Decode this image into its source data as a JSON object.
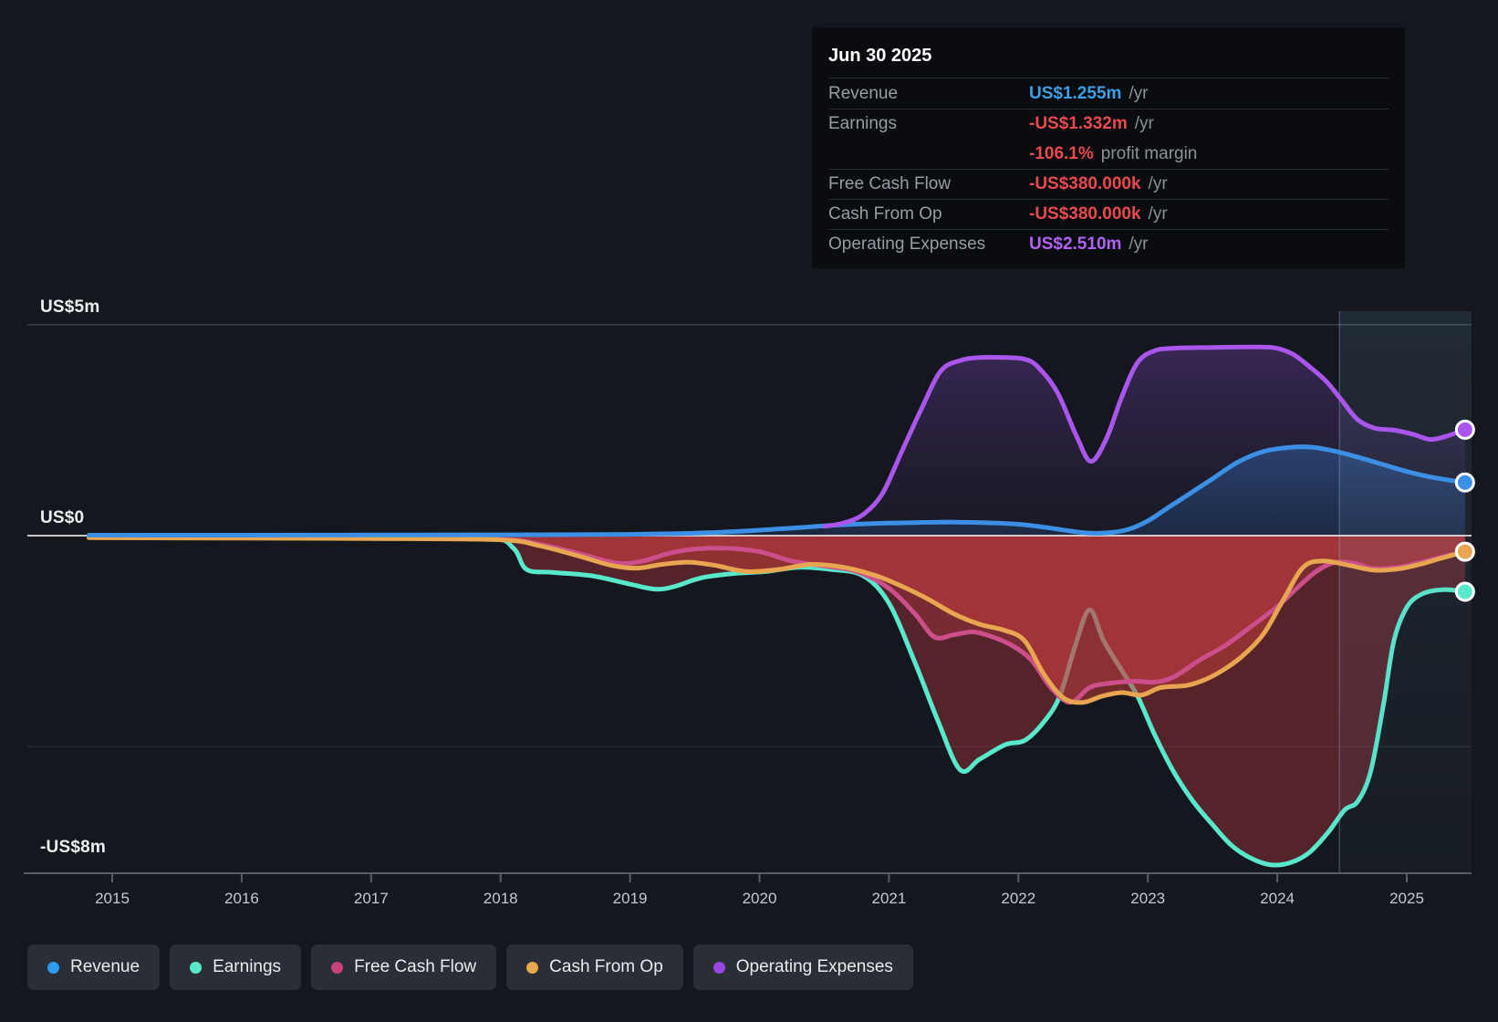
{
  "tooltip": {
    "date": "Jun 30 2025",
    "rows": [
      {
        "label": "Revenue",
        "value": "US$1.255m",
        "suffix": "/yr",
        "color": "blue",
        "divider": true
      },
      {
        "label": "Earnings",
        "value": "-US$1.332m",
        "suffix": "/yr",
        "color": "red",
        "divider": true
      },
      {
        "label": "",
        "value": "-106.1%",
        "suffix": "profit margin",
        "color": "red",
        "divider": false
      },
      {
        "label": "Free Cash Flow",
        "value": "-US$380.000k",
        "suffix": "/yr",
        "color": "red",
        "divider": true
      },
      {
        "label": "Cash From Op",
        "value": "-US$380.000k",
        "suffix": "/yr",
        "color": "red",
        "divider": true
      },
      {
        "label": "Operating Expenses",
        "value": "US$2.510m",
        "suffix": "/yr",
        "color": "purple",
        "divider": true
      }
    ]
  },
  "legend": [
    {
      "id": "revenue",
      "label": "Revenue",
      "color": "#2d9df0"
    },
    {
      "id": "earnings",
      "label": "Earnings",
      "color": "#58e8cb"
    },
    {
      "id": "fcf",
      "label": "Free Cash Flow",
      "color": "#c9417e"
    },
    {
      "id": "cashop",
      "label": "Cash From Op",
      "color": "#e8a84e"
    },
    {
      "id": "opex",
      "label": "Operating Expenses",
      "color": "#9b45e4"
    }
  ],
  "chart_data": {
    "type": "area",
    "title": "",
    "xlabel": "",
    "ylabel": "US$",
    "x_unit": "year",
    "xlim": [
      2014.35,
      2025.7
    ],
    "ylim": [
      -8,
      5
    ],
    "grid": true,
    "y_axis_labels": [
      {
        "label": "US$5m",
        "value": 5
      },
      {
        "label": "US$0",
        "value": 0
      },
      {
        "label": "-US$8m",
        "value": -8
      }
    ],
    "x_ticks": [
      2015,
      2016,
      2017,
      2018,
      2019,
      2020,
      2021,
      2022,
      2023,
      2024,
      2025
    ],
    "highlight_band": {
      "start": 2024.48,
      "end": 2025.5
    },
    "series": [
      {
        "name": "Revenue",
        "color": "#3b90e5",
        "fill": "rgba(56,122,201,0.36)",
        "points": [
          [
            2014.82,
            0.01
          ],
          [
            2016,
            0.01
          ],
          [
            2017,
            0.015
          ],
          [
            2018,
            0.02
          ],
          [
            2018.8,
            0.025
          ],
          [
            2019.2,
            0.04
          ],
          [
            2019.6,
            0.07
          ],
          [
            2020,
            0.13
          ],
          [
            2020.3,
            0.19
          ],
          [
            2020.6,
            0.25
          ],
          [
            2020.9,
            0.29
          ],
          [
            2021.2,
            0.31
          ],
          [
            2021.5,
            0.32
          ],
          [
            2021.8,
            0.3
          ],
          [
            2022.0,
            0.27
          ],
          [
            2022.2,
            0.2
          ],
          [
            2022.4,
            0.11
          ],
          [
            2022.55,
            0.06
          ],
          [
            2022.7,
            0.07
          ],
          [
            2022.85,
            0.15
          ],
          [
            2023.0,
            0.35
          ],
          [
            2023.15,
            0.65
          ],
          [
            2023.3,
            0.95
          ],
          [
            2023.5,
            1.35
          ],
          [
            2023.7,
            1.75
          ],
          [
            2023.9,
            2.0
          ],
          [
            2024.1,
            2.09
          ],
          [
            2024.25,
            2.1
          ],
          [
            2024.4,
            2.03
          ],
          [
            2024.6,
            1.88
          ],
          [
            2024.8,
            1.7
          ],
          [
            2025.0,
            1.52
          ],
          [
            2025.2,
            1.38
          ],
          [
            2025.45,
            1.26
          ]
        ]
      },
      {
        "name": "Earnings",
        "color": "#58e8cb",
        "fill": "rgba(150,47,55,0.5)",
        "points": [
          [
            2014.82,
            -0.02
          ],
          [
            2016,
            -0.03
          ],
          [
            2017,
            -0.04
          ],
          [
            2017.9,
            -0.05
          ],
          [
            2018.1,
            -0.3
          ],
          [
            2018.2,
            -0.8
          ],
          [
            2018.4,
            -0.87
          ],
          [
            2018.7,
            -0.95
          ],
          [
            2019.0,
            -1.15
          ],
          [
            2019.2,
            -1.27
          ],
          [
            2019.35,
            -1.2
          ],
          [
            2019.55,
            -1.0
          ],
          [
            2019.8,
            -0.9
          ],
          [
            2020.05,
            -0.85
          ],
          [
            2020.3,
            -0.75
          ],
          [
            2020.55,
            -0.8
          ],
          [
            2020.8,
            -0.95
          ],
          [
            2021.0,
            -1.6
          ],
          [
            2021.2,
            -3.0
          ],
          [
            2021.38,
            -4.4
          ],
          [
            2021.55,
            -5.55
          ],
          [
            2021.7,
            -5.3
          ],
          [
            2021.9,
            -4.95
          ],
          [
            2022.05,
            -4.85
          ],
          [
            2022.2,
            -4.4
          ],
          [
            2022.32,
            -3.8
          ],
          [
            2022.44,
            -2.6
          ],
          [
            2022.55,
            -1.76
          ],
          [
            2022.66,
            -2.5
          ],
          [
            2022.8,
            -3.2
          ],
          [
            2022.92,
            -3.8
          ],
          [
            2023.05,
            -4.7
          ],
          [
            2023.2,
            -5.6
          ],
          [
            2023.35,
            -6.3
          ],
          [
            2023.5,
            -6.85
          ],
          [
            2023.65,
            -7.35
          ],
          [
            2023.8,
            -7.65
          ],
          [
            2023.95,
            -7.8
          ],
          [
            2024.1,
            -7.75
          ],
          [
            2024.25,
            -7.5
          ],
          [
            2024.4,
            -7.0
          ],
          [
            2024.52,
            -6.5
          ],
          [
            2024.62,
            -6.3
          ],
          [
            2024.72,
            -5.6
          ],
          [
            2024.82,
            -4.0
          ],
          [
            2024.9,
            -2.5
          ],
          [
            2025.0,
            -1.7
          ],
          [
            2025.12,
            -1.38
          ],
          [
            2025.28,
            -1.28
          ],
          [
            2025.45,
            -1.33
          ]
        ]
      },
      {
        "name": "Free Cash Flow",
        "color": "#cc4f8c",
        "fill": "rgba(205,62,72,0.3)",
        "points": [
          [
            2014.82,
            -0.04
          ],
          [
            2016,
            -0.05
          ],
          [
            2017,
            -0.06
          ],
          [
            2018,
            -0.09
          ],
          [
            2018.3,
            -0.2
          ],
          [
            2018.6,
            -0.42
          ],
          [
            2018.9,
            -0.65
          ],
          [
            2019.1,
            -0.6
          ],
          [
            2019.3,
            -0.42
          ],
          [
            2019.5,
            -0.32
          ],
          [
            2019.75,
            -0.3
          ],
          [
            2020.0,
            -0.38
          ],
          [
            2020.25,
            -0.6
          ],
          [
            2020.5,
            -0.72
          ],
          [
            2020.75,
            -0.85
          ],
          [
            2021.0,
            -1.25
          ],
          [
            2021.2,
            -1.85
          ],
          [
            2021.35,
            -2.4
          ],
          [
            2021.5,
            -2.35
          ],
          [
            2021.65,
            -2.28
          ],
          [
            2021.8,
            -2.4
          ],
          [
            2021.95,
            -2.6
          ],
          [
            2022.1,
            -2.95
          ],
          [
            2022.25,
            -3.6
          ],
          [
            2022.4,
            -3.95
          ],
          [
            2022.55,
            -3.6
          ],
          [
            2022.7,
            -3.5
          ],
          [
            2022.9,
            -3.45
          ],
          [
            2023.05,
            -3.47
          ],
          [
            2023.2,
            -3.35
          ],
          [
            2023.4,
            -2.95
          ],
          [
            2023.6,
            -2.6
          ],
          [
            2023.8,
            -2.15
          ],
          [
            2024.0,
            -1.68
          ],
          [
            2024.15,
            -1.25
          ],
          [
            2024.3,
            -0.85
          ],
          [
            2024.45,
            -0.63
          ],
          [
            2024.6,
            -0.66
          ],
          [
            2024.75,
            -0.78
          ],
          [
            2024.95,
            -0.74
          ],
          [
            2025.1,
            -0.64
          ],
          [
            2025.25,
            -0.52
          ],
          [
            2025.45,
            -0.38
          ]
        ]
      },
      {
        "name": "Cash From Op",
        "color": "#e7a64f",
        "fill": "rgba(198,62,56,0.52)",
        "points": [
          [
            2014.82,
            -0.05
          ],
          [
            2016,
            -0.06
          ],
          [
            2017,
            -0.07
          ],
          [
            2018,
            -0.1
          ],
          [
            2018.3,
            -0.24
          ],
          [
            2018.6,
            -0.48
          ],
          [
            2018.85,
            -0.7
          ],
          [
            2019.05,
            -0.77
          ],
          [
            2019.25,
            -0.68
          ],
          [
            2019.45,
            -0.63
          ],
          [
            2019.65,
            -0.7
          ],
          [
            2019.9,
            -0.85
          ],
          [
            2020.15,
            -0.8
          ],
          [
            2020.4,
            -0.68
          ],
          [
            2020.65,
            -0.75
          ],
          [
            2020.9,
            -0.95
          ],
          [
            2021.1,
            -1.2
          ],
          [
            2021.3,
            -1.5
          ],
          [
            2021.5,
            -1.85
          ],
          [
            2021.7,
            -2.1
          ],
          [
            2021.9,
            -2.25
          ],
          [
            2022.05,
            -2.5
          ],
          [
            2022.2,
            -3.3
          ],
          [
            2022.35,
            -3.85
          ],
          [
            2022.5,
            -3.95
          ],
          [
            2022.65,
            -3.8
          ],
          [
            2022.8,
            -3.72
          ],
          [
            2022.95,
            -3.78
          ],
          [
            2023.1,
            -3.6
          ],
          [
            2023.3,
            -3.55
          ],
          [
            2023.45,
            -3.4
          ],
          [
            2023.6,
            -3.15
          ],
          [
            2023.75,
            -2.8
          ],
          [
            2023.9,
            -2.3
          ],
          [
            2024.05,
            -1.5
          ],
          [
            2024.2,
            -0.75
          ],
          [
            2024.35,
            -0.6
          ],
          [
            2024.55,
            -0.7
          ],
          [
            2024.75,
            -0.82
          ],
          [
            2024.95,
            -0.78
          ],
          [
            2025.1,
            -0.68
          ],
          [
            2025.25,
            -0.55
          ],
          [
            2025.45,
            -0.38
          ]
        ]
      },
      {
        "name": "Operating Expenses",
        "color": "#aa55ec",
        "fill": "gradient-opex",
        "points": [
          [
            2020.5,
            0.22
          ],
          [
            2020.65,
            0.3
          ],
          [
            2020.8,
            0.5
          ],
          [
            2020.95,
            1.0
          ],
          [
            2021.1,
            2.0
          ],
          [
            2021.25,
            3.0
          ],
          [
            2021.4,
            3.9
          ],
          [
            2021.55,
            4.15
          ],
          [
            2021.7,
            4.22
          ],
          [
            2021.9,
            4.22
          ],
          [
            2022.05,
            4.18
          ],
          [
            2022.15,
            4.0
          ],
          [
            2022.3,
            3.4
          ],
          [
            2022.45,
            2.35
          ],
          [
            2022.56,
            1.76
          ],
          [
            2022.68,
            2.3
          ],
          [
            2022.8,
            3.3
          ],
          [
            2022.92,
            4.1
          ],
          [
            2023.05,
            4.38
          ],
          [
            2023.2,
            4.44
          ],
          [
            2023.5,
            4.46
          ],
          [
            2023.8,
            4.47
          ],
          [
            2023.98,
            4.45
          ],
          [
            2024.12,
            4.3
          ],
          [
            2024.25,
            4.0
          ],
          [
            2024.38,
            3.65
          ],
          [
            2024.5,
            3.2
          ],
          [
            2024.62,
            2.75
          ],
          [
            2024.75,
            2.55
          ],
          [
            2024.9,
            2.5
          ],
          [
            2025.05,
            2.4
          ],
          [
            2025.18,
            2.28
          ],
          [
            2025.3,
            2.35
          ],
          [
            2025.45,
            2.51
          ]
        ]
      }
    ],
    "end_markers": [
      {
        "series": "Operating Expenses",
        "value": 2.51
      },
      {
        "series": "Revenue",
        "value": 1.26
      },
      {
        "series": "Cash From Op",
        "value": -0.38
      },
      {
        "series": "Earnings",
        "value": -1.33
      }
    ]
  }
}
